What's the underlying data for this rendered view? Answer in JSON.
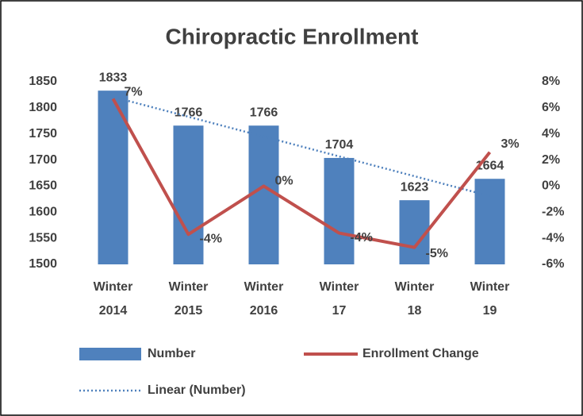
{
  "chart_data": {
    "type": "bar-line",
    "title": "Chiropractic Enrollment",
    "categories": [
      "Winter 2014",
      "Winter 2015",
      "Winter 2016",
      "Winter 17",
      "Winter 18",
      "Winter 19"
    ],
    "series": [
      {
        "name": "Number",
        "type": "bar",
        "color": "#4f81bd",
        "values": [
          1833,
          1766,
          1766,
          1704,
          1623,
          1664
        ]
      },
      {
        "name": "Enrollment Change",
        "type": "line",
        "axis": "y2",
        "color": "#c0504d",
        "values": [
          6.7,
          -3.7,
          0,
          -3.6,
          -4.7,
          2.6
        ],
        "value_labels": [
          "7%",
          "-4%",
          "0%",
          "-4%",
          "-5%",
          "3%"
        ]
      },
      {
        "name": "Linear (Number)",
        "type": "trendline",
        "color": "#4f81bd",
        "values": [
          1821,
          1783,
          1745,
          1707,
          1669,
          1631
        ]
      }
    ],
    "ylim": [
      1500,
      1850
    ],
    "yticks": [
      1500,
      1550,
      1600,
      1650,
      1700,
      1750,
      1800,
      1850
    ],
    "y2lim": [
      -6,
      8
    ],
    "y2ticks": [
      {
        "value": -6,
        "label": "-6%"
      },
      {
        "value": -4,
        "label": "-4%"
      },
      {
        "value": -2,
        "label": "-2%"
      },
      {
        "value": 0,
        "label": "0%"
      },
      {
        "value": 2,
        "label": "2%"
      },
      {
        "value": 4,
        "label": "4%"
      },
      {
        "value": 6,
        "label": "6%"
      },
      {
        "value": 8,
        "label": "8%"
      }
    ],
    "grid": false,
    "legend": "bottom"
  }
}
